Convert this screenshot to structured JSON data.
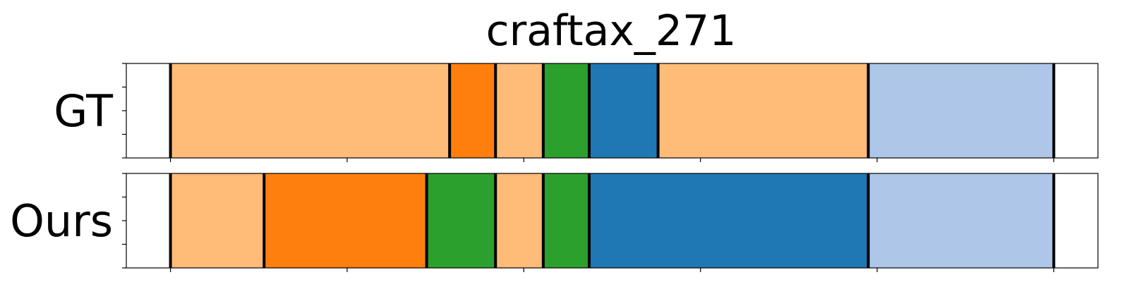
{
  "chart_data": {
    "type": "bar",
    "title": "craftax_271",
    "xlabel": "",
    "ylabel": "",
    "x_ticks": [
      0,
      100,
      200,
      300,
      400,
      500
    ],
    "xlim": [
      -25,
      525
    ],
    "rows": [
      {
        "label": "GT",
        "segments": [
          {
            "start": 0,
            "end": 158,
            "color": "#ffbb78"
          },
          {
            "start": 158,
            "end": 184,
            "color": "#ff7f0e"
          },
          {
            "start": 184,
            "end": 211,
            "color": "#ffbb78"
          },
          {
            "start": 211,
            "end": 237,
            "color": "#2ca02c"
          },
          {
            "start": 237,
            "end": 276,
            "color": "#1f77b4"
          },
          {
            "start": 276,
            "end": 395,
            "color": "#ffbb78"
          },
          {
            "start": 395,
            "end": 500,
            "color": "#aec7e8"
          }
        ]
      },
      {
        "label": "Ours",
        "segments": [
          {
            "start": 0,
            "end": 53,
            "color": "#ffbb78"
          },
          {
            "start": 53,
            "end": 145,
            "color": "#ff7f0e"
          },
          {
            "start": 145,
            "end": 184,
            "color": "#2ca02c"
          },
          {
            "start": 184,
            "end": 211,
            "color": "#ffbb78"
          },
          {
            "start": 211,
            "end": 237,
            "color": "#2ca02c"
          },
          {
            "start": 237,
            "end": 395,
            "color": "#1f77b4"
          },
          {
            "start": 395,
            "end": 500,
            "color": "#aec7e8"
          }
        ]
      }
    ]
  }
}
